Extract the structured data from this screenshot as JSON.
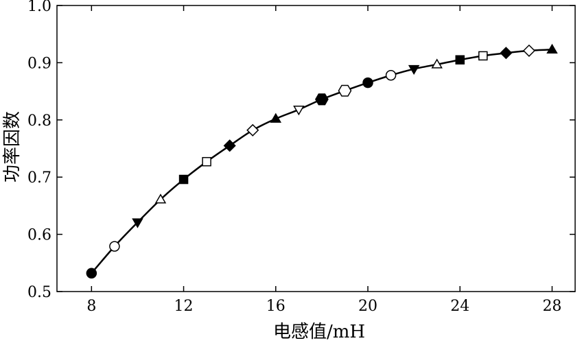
{
  "chart_data": {
    "type": "line",
    "title": "",
    "xlabel": "电感值/mH",
    "ylabel": "功率因数",
    "xlim": [
      6.5,
      29
    ],
    "ylim": [
      0.5,
      1.0
    ],
    "x_ticks": [
      8,
      12,
      16,
      20,
      24,
      28
    ],
    "y_ticks": [
      0.5,
      0.6,
      0.7,
      0.8,
      0.9,
      1.0
    ],
    "x_tick_labels": [
      "8",
      "12",
      "16",
      "20",
      "24",
      "28"
    ],
    "y_tick_labels": [
      "0.5",
      "0.6",
      "0.7",
      "0.8",
      "0.9",
      "1.0"
    ],
    "grid": false,
    "legend": "none",
    "line_color": "#000000",
    "series": [
      {
        "x": [
          8,
          9,
          10,
          11,
          12,
          13,
          14,
          15,
          16,
          17,
          18,
          19,
          20,
          21,
          22,
          23,
          24,
          25,
          26,
          27,
          28
        ],
        "y": [
          0.532,
          0.579,
          0.621,
          0.661,
          0.696,
          0.727,
          0.755,
          0.782,
          0.802,
          0.818,
          0.836,
          0.851,
          0.865,
          0.878,
          0.889,
          0.897,
          0.905,
          0.912,
          0.917,
          0.921,
          0.923
        ],
        "markers": [
          "filled-circle",
          "open-circle",
          "filled-triangle-down",
          "open-triangle-up",
          "filled-square",
          "open-square",
          "filled-diamond",
          "open-diamond",
          "filled-triangle-up",
          "open-triangle-down",
          "filled-hexagon",
          "open-hexagon",
          "filled-circle",
          "open-circle",
          "filled-triangle-down",
          "open-triangle-up",
          "filled-square",
          "open-square",
          "filled-diamond",
          "open-diamond",
          "filled-triangle-up"
        ]
      }
    ]
  }
}
